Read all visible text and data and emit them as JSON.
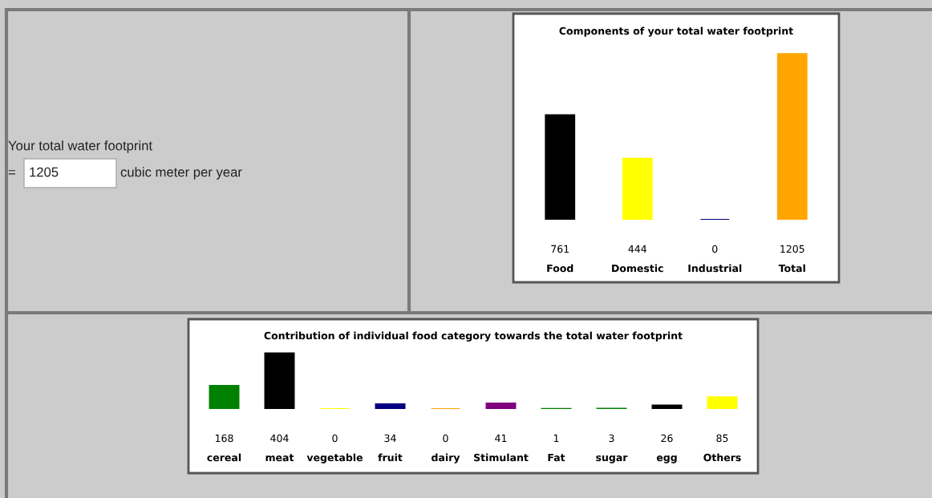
{
  "chart_data": [
    {
      "type": "other",
      "annotations": [
        "Your total water footprint",
        "=",
        "1205",
        "cubic meter per year"
      ]
    },
    {
      "type": "bar",
      "title": "Components of your total water footprint",
      "categories": [
        "Food",
        "Domestic",
        "Industrial",
        "Total"
      ],
      "values": [
        761,
        444,
        0,
        1205
      ],
      "colors": [
        "#000000",
        "#ffff00",
        "#000080",
        "#ffa500"
      ],
      "data_labels": true,
      "grid": false
    },
    {
      "type": "bar",
      "title": "Contribution of individual food category towards the total water footprint",
      "categories": [
        "cereal",
        "meat",
        "vegetable",
        "fruit",
        "dairy",
        "Stimulant",
        "Fat",
        "sugar",
        "egg",
        "Others"
      ],
      "values": [
        168,
        404,
        0,
        34,
        0,
        41,
        1,
        3,
        26,
        85
      ],
      "colors": [
        "#008000",
        "#000000",
        "#ffff00",
        "#000080",
        "#ffa500",
        "#800080",
        "#008000",
        "#008000",
        "#000000",
        "#ffff00"
      ],
      "data_labels": true,
      "grid": false
    }
  ]
}
